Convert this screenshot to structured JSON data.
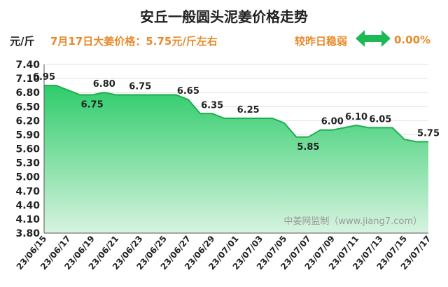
{
  "header": {
    "title": "安丘一般圆头泥姜价格走势",
    "unit": "元/斤",
    "subtitle": "7月17日大姜价格：5.75元/斤左右",
    "compare_label": "较昨日稳弱",
    "compare_value": "0.00%",
    "compare_icon": "double-arrow-icon"
  },
  "watermark": "中姜网监制（www.jiang7.com）",
  "colors": {
    "area_top": "#2ecc6a",
    "area_bottom": "#d7f3e0",
    "line": "#1fae50",
    "accent": "#e88a2b",
    "arrow": "#1db954"
  },
  "chart_data": {
    "type": "area",
    "title": "安丘一般圆头泥姜价格走势",
    "ylabel": "元/斤",
    "ylim": [
      3.8,
      7.4
    ],
    "yticks": [
      "7.40",
      "7.10",
      "6.80",
      "6.50",
      "6.20",
      "5.90",
      "5.60",
      "5.30",
      "5.00",
      "4.70",
      "4.40",
      "4.10",
      "3.80"
    ],
    "x": [
      "23/06/15",
      "23/06/16",
      "23/06/17",
      "23/06/18",
      "23/06/19",
      "23/06/20",
      "23/06/21",
      "23/06/22",
      "23/06/23",
      "23/06/24",
      "23/06/25",
      "23/06/26",
      "23/06/27",
      "23/06/28",
      "23/06/29",
      "23/06/30",
      "23/07/01",
      "23/07/02",
      "23/07/03",
      "23/07/04",
      "23/07/05",
      "23/07/06",
      "23/07/07",
      "23/07/08",
      "23/07/09",
      "23/07/10",
      "23/07/11",
      "23/07/12",
      "23/07/13",
      "23/07/14",
      "23/07/15",
      "23/07/16",
      "23/07/17"
    ],
    "xtick_labels": [
      "23/06/15",
      "23/06/17",
      "23/06/19",
      "23/06/21",
      "23/06/23",
      "23/06/25",
      "23/06/27",
      "23/06/29",
      "23/07/01",
      "23/07/03",
      "23/07/05",
      "23/07/07",
      "23/07/09",
      "23/07/11",
      "23/07/13",
      "23/07/15",
      "23/07/17"
    ],
    "values": [
      6.95,
      6.95,
      6.85,
      6.75,
      6.75,
      6.8,
      6.75,
      6.75,
      6.75,
      6.75,
      6.75,
      6.75,
      6.65,
      6.35,
      6.35,
      6.25,
      6.25,
      6.25,
      6.25,
      6.25,
      6.15,
      5.85,
      5.85,
      6.0,
      6.0,
      6.05,
      6.1,
      6.05,
      6.05,
      6.05,
      5.8,
      5.75,
      5.75
    ],
    "data_labels": [
      {
        "index": 0,
        "text": "6.95"
      },
      {
        "index": 4,
        "text": "6.75",
        "below": true
      },
      {
        "index": 5,
        "text": "6.80"
      },
      {
        "index": 8,
        "text": "6.75"
      },
      {
        "index": 12,
        "text": "6.65"
      },
      {
        "index": 14,
        "text": "6.35"
      },
      {
        "index": 17,
        "text": "6.25"
      },
      {
        "index": 22,
        "text": "5.85",
        "below": true
      },
      {
        "index": 24,
        "text": "6.00"
      },
      {
        "index": 26,
        "text": "6.10"
      },
      {
        "index": 28,
        "text": "6.05"
      },
      {
        "index": 32,
        "text": "5.75"
      }
    ]
  }
}
